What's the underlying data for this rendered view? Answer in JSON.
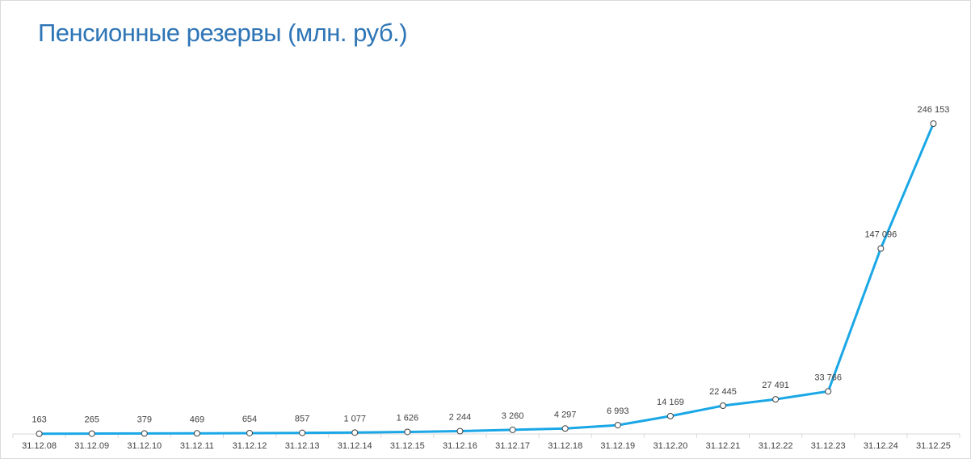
{
  "chart_data": {
    "type": "line",
    "title": "Пенсионные резервы (млн. руб.)",
    "categories": [
      "31.12.08",
      "31.12.09",
      "31.12.10",
      "31.12.11",
      "31.12.12",
      "31.12.13",
      "31.12.14",
      "31.12.15",
      "31.12.16",
      "31.12.17",
      "31.12.18",
      "31.12.19",
      "31.12.20",
      "31.12.21",
      "31.12.22",
      "31.12.23",
      "31.12.24",
      "31.12.25"
    ],
    "values": [
      163,
      265,
      379,
      469,
      654,
      857,
      1077,
      1626,
      2244,
      3260,
      4297,
      6993,
      14169,
      22445,
      27491,
      33766,
      147096,
      246153
    ],
    "data_labels": [
      "163",
      "265",
      "379",
      "469",
      "654",
      "857",
      "1 077",
      "1 626",
      "2 244",
      "3 260",
      "4 297",
      "6 993",
      "14 169",
      "22 445",
      "27 491",
      "33 766",
      "147 096",
      "246 153"
    ],
    "ylim": [
      0,
      246153
    ],
    "grid": false,
    "legend": "none",
    "colors": {
      "line": "#1aa7e6",
      "title": "#2e75b6",
      "axis": "#d9d9d9"
    }
  }
}
